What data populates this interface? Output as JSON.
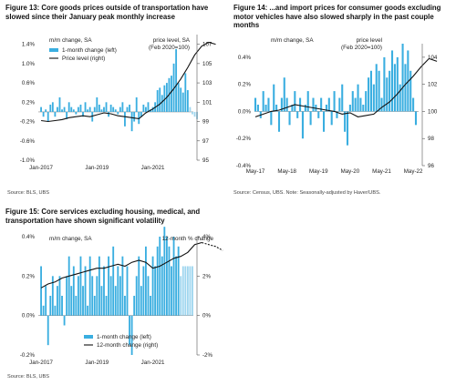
{
  "colors": {
    "bar": "#3aaee0",
    "line": "#111111",
    "axis": "#555555",
    "text": "#222222"
  },
  "figures": [
    {
      "id": "fig13",
      "title": "Figure 13: Core goods prices outside of transportation have slowed since their January peak monthly increase",
      "source": "Source: BLS, UBS",
      "chart_data": {
        "type": "bar",
        "xlim": [
          2016.9,
          2022.45
        ],
        "xticks": [
          {
            "x": 2017.0,
            "label": "Jan-2017"
          },
          {
            "x": 2019.0,
            "label": "Jan-2019"
          },
          {
            "x": 2021.0,
            "label": "Jan-2021"
          }
        ],
        "ylim_left": [
          -1.0,
          1.6
        ],
        "yticks_left": [
          {
            "v": 1.4,
            "label": "1.4%"
          },
          {
            "v": 1.0,
            "label": "1.0%"
          },
          {
            "v": 0.6,
            "label": "0.6%"
          },
          {
            "v": 0.2,
            "label": "0.2%"
          },
          {
            "v": -0.2,
            "label": "-0.2%"
          },
          {
            "v": -0.6,
            "label": "-0.6%"
          },
          {
            "v": -1.0,
            "label": "-1.0%"
          }
        ],
        "ylim_right": [
          95,
          108
        ],
        "yticks_right": [
          {
            "v": 107,
            "label": "107"
          },
          {
            "v": 105,
            "label": "105"
          },
          {
            "v": 103,
            "label": "103"
          },
          {
            "v": 101,
            "label": "101"
          },
          {
            "v": 99,
            "label": "99"
          },
          {
            "v": 97,
            "label": "97"
          },
          {
            "v": 95,
            "label": "95"
          }
        ],
        "annotations": [
          "m/m change, SA",
          "price level, SA",
          "(Feb 2020=100)"
        ],
        "legend": [
          {
            "label": "1-month change (left)",
            "kind": "bar"
          },
          {
            "label": "Price level (right)",
            "kind": "line"
          }
        ],
        "legend_position": "top-left",
        "bar_start": 2017.0,
        "bar_step": 0.08333,
        "bars": [
          0.1,
          -0.1,
          0.05,
          -0.2,
          0.15,
          0.2,
          -0.1,
          0.1,
          0.3,
          0.05,
          0.1,
          -0.15,
          0.2,
          0.1,
          0.05,
          -0.05,
          0.1,
          0.15,
          -0.1,
          0.2,
          0.05,
          0.1,
          -0.2,
          0.1,
          0.3,
          0.15,
          0.05,
          0.1,
          0.2,
          -0.1,
          0.15,
          0.1,
          0.05,
          -0.05,
          0.1,
          0.2,
          -0.3,
          0.1,
          0.15,
          -0.4,
          -0.2,
          0.3,
          -0.25,
          -0.1,
          0.15,
          0.1,
          0.2,
          0.05,
          0.1,
          0.2,
          0.45,
          0.5,
          0.35,
          0.55,
          0.6,
          0.7,
          0.75,
          1.0,
          1.3,
          0.6,
          0.5,
          0.4,
          0.8,
          0.45,
          0.1,
          -0.05,
          -0.1,
          -0.15
        ],
        "bar_colors_lighter_last": 4,
        "line_start": 2017.0,
        "line_step": 0.25,
        "line": [
          99.1,
          99.0,
          99.1,
          99.2,
          99.4,
          99.5,
          99.6,
          99.5,
          99.7,
          99.9,
          99.8,
          99.6,
          99.5,
          99.4,
          99.3,
          99.9,
          100.3,
          100.8,
          101.5,
          102.4,
          103.4,
          104.6,
          105.9,
          106.8,
          107.2,
          107.0
        ]
      }
    },
    {
      "id": "fig14",
      "title": "Figure 14: ...and import prices for consumer goods excluding motor vehicles have also slowed sharply in the past couple months",
      "source": "Source: Census, UBS. Note: Seasonally-adjusted by Haver/UBS.",
      "chart_data": {
        "type": "bar",
        "xlim": [
          2017.3,
          2022.5
        ],
        "xticks": [
          {
            "x": 2017.33,
            "label": "May-17"
          },
          {
            "x": 2018.33,
            "label": "May-18"
          },
          {
            "x": 2019.33,
            "label": "May-19"
          },
          {
            "x": 2020.33,
            "label": "May-20"
          },
          {
            "x": 2021.33,
            "label": "May-21"
          },
          {
            "x": 2022.33,
            "label": "May-22"
          }
        ],
        "ylim_left": [
          -0.4,
          0.5
        ],
        "yticks_left": [
          {
            "v": 0.4,
            "label": "0.4%"
          },
          {
            "v": 0.2,
            "label": "0.2%"
          },
          {
            "v": 0.0,
            "label": "0.0%"
          },
          {
            "v": -0.2,
            "label": "-0.2%"
          },
          {
            "v": -0.4,
            "label": "-0.4%"
          }
        ],
        "ylim_right": [
          96,
          105
        ],
        "yticks_right": [
          {
            "v": 104,
            "label": "104"
          },
          {
            "v": 102,
            "label": "102"
          },
          {
            "v": 100,
            "label": "100"
          },
          {
            "v": 98,
            "label": "98"
          },
          {
            "v": 96,
            "label": "96"
          }
        ],
        "annotations": [
          "m/m change, SA",
          "price level",
          "(Feb 2020=100)"
        ],
        "legend": [],
        "legend_position": "",
        "bar_start": 2017.33,
        "bar_step": 0.08333,
        "bars": [
          0.1,
          0.05,
          -0.05,
          0.15,
          0.05,
          0.1,
          -0.1,
          0.2,
          0.05,
          -0.15,
          0.1,
          0.25,
          0.1,
          -0.1,
          0.05,
          0.15,
          -0.05,
          0.1,
          -0.2,
          0.05,
          0.15,
          -0.1,
          0.1,
          0.05,
          -0.05,
          0.1,
          -0.15,
          0.05,
          0.1,
          -0.1,
          0.15,
          -0.05,
          0.1,
          0.2,
          -0.15,
          -0.25,
          0.05,
          0.15,
          0.1,
          0.2,
          0.1,
          0.05,
          0.15,
          0.25,
          0.3,
          0.2,
          0.35,
          0.3,
          0.1,
          0.4,
          0.25,
          0.3,
          0.45,
          0.35,
          0.4,
          0.2,
          0.5,
          0.35,
          0.45,
          0.3,
          0.1,
          -0.1
        ],
        "bar_colors_lighter_last": 0,
        "line_start": 2017.33,
        "line_step": 0.25,
        "line": [
          99.6,
          99.8,
          100.0,
          100.1,
          100.3,
          100.5,
          100.4,
          100.3,
          100.2,
          100.1,
          100.0,
          99.8,
          99.9,
          99.6,
          99.7,
          99.8,
          100.3,
          100.7,
          101.3,
          102.0,
          102.6,
          103.3,
          103.9,
          103.7
        ]
      }
    },
    {
      "id": "fig15",
      "title": "Figure 15: Core services excluding housing, medical, and transportation have shown significant volatility",
      "source": "Source: BLS, UBS",
      "chart_data": {
        "type": "bar",
        "xlim": [
          2016.9,
          2022.45
        ],
        "xticks": [
          {
            "x": 2017.0,
            "label": "Jan-2017"
          },
          {
            "x": 2019.0,
            "label": "Jan-2019"
          },
          {
            "x": 2021.0,
            "label": "Jan-2021"
          }
        ],
        "ylim_left": [
          -0.2,
          0.4
        ],
        "yticks_left": [
          {
            "v": 0.4,
            "label": "0.4%"
          },
          {
            "v": 0.2,
            "label": "0.2%"
          },
          {
            "v": 0.0,
            "label": "0.0%"
          },
          {
            "v": -0.2,
            "label": "-0.2%"
          }
        ],
        "ylim_right": [
          -2,
          4
        ],
        "yticks_right": [
          {
            "v": 4,
            "label": "4%"
          },
          {
            "v": 2,
            "label": "2%"
          },
          {
            "v": 0,
            "label": "0%"
          },
          {
            "v": -2,
            "label": "-2%"
          }
        ],
        "annotations": [
          "m/m change, SA",
          "12-month % change"
        ],
        "legend": [
          {
            "label": "1-month change (left)",
            "kind": "bar"
          },
          {
            "label": "12-month change (right)",
            "kind": "line"
          }
        ],
        "legend_position": "bottom-center",
        "bar_start": 2017.0,
        "bar_step": 0.08333,
        "bars": [
          0.25,
          0.05,
          0.15,
          -0.15,
          0.1,
          0.2,
          0.05,
          0.15,
          0.2,
          0.1,
          -0.05,
          0.2,
          0.3,
          0.15,
          0.25,
          0.1,
          0.2,
          0.3,
          0.15,
          0.25,
          0.05,
          0.3,
          0.2,
          0.1,
          0.2,
          0.3,
          0.15,
          0.25,
          0.1,
          0.3,
          0.2,
          0.35,
          0.15,
          0.25,
          0.2,
          0.3,
          0.1,
          0.25,
          -0.15,
          -0.2,
          0.1,
          0.2,
          0.3,
          0.15,
          0.25,
          0.35,
          0.2,
          0.1,
          0.3,
          0.25,
          0.35,
          0.4,
          0.3,
          0.45,
          0.4,
          0.35,
          0.25,
          0.4,
          0.3,
          0.35,
          0.2,
          0.25,
          0.25,
          0.25,
          0.25,
          0.25
        ],
        "bar_colors_lighter_last": 6,
        "line_start": 2017.0,
        "line_step": 0.25,
        "line": [
          1.4,
          1.6,
          1.7,
          1.9,
          2.0,
          2.1,
          2.2,
          2.3,
          2.4,
          2.4,
          2.5,
          2.6,
          2.5,
          2.7,
          2.8,
          2.7,
          2.4,
          2.5,
          2.7,
          2.9,
          3.0,
          3.2,
          3.6,
          3.7,
          3.6,
          3.5,
          3.3
        ],
        "line_dashed_last": 4
      }
    }
  ]
}
